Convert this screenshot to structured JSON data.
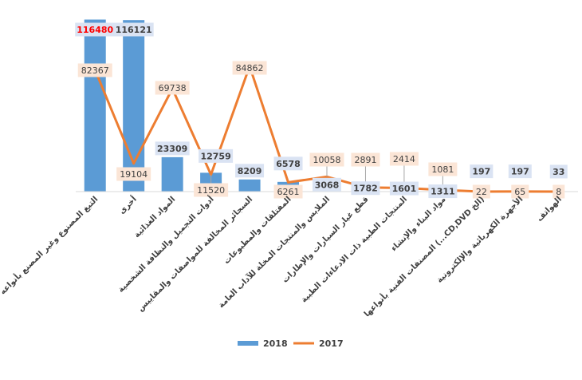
{
  "chart_data": {
    "type": "bar",
    "title": "",
    "xlabel": "",
    "ylabel": "",
    "ylim": [
      0,
      120000
    ],
    "legend_position": "bottom",
    "categories": [
      "التبغ المصنوع وغير المصنع بأنواعه",
      "أخرى",
      "المواد الغذائية",
      "أدوات التجميل والنظافة الشخصية",
      "السجائر المخالفة للمواصفات والمقاييس",
      "المفتلقات والمطبوعات",
      "الملابس والمنتجات المخلة للآداب العامة",
      "قطع غيار السيارات والإطارات",
      "المنتجات الطبية ذات الادعاءات الطبية",
      "مواد البناء والإنشاء",
      "المصنفات الفنية بأنواعها (...CD,DVD الخ)",
      "الأجهزة الكهربائية والإلكترونية",
      "الهواتف"
    ],
    "series": [
      {
        "name": "2018",
        "kind": "bar",
        "color": "#5b9bd5",
        "values": [
          116480,
          116121,
          23309,
          12759,
          8209,
          6578,
          3068,
          1782,
          1601,
          1311,
          197,
          197,
          33
        ],
        "labels": [
          "116480",
          "116121",
          "23309",
          "12759",
          "8209",
          "6578",
          "3068",
          "1782",
          "1601",
          "1311",
          "197",
          "197",
          "33"
        ],
        "highlight_color": "#ff0000",
        "highlight_index": 0
      },
      {
        "name": "2017",
        "kind": "line",
        "color": "#ed7d31",
        "values": [
          82367,
          19104,
          69738,
          11520,
          84862,
          6261,
          10058,
          2891,
          2414,
          1081,
          22,
          65,
          8
        ],
        "labels": [
          "82367",
          "19104",
          "69738",
          "11520",
          "84862",
          "6261",
          "10058",
          "2891",
          "2414",
          "1081",
          "22",
          "65",
          "8"
        ]
      }
    ]
  }
}
